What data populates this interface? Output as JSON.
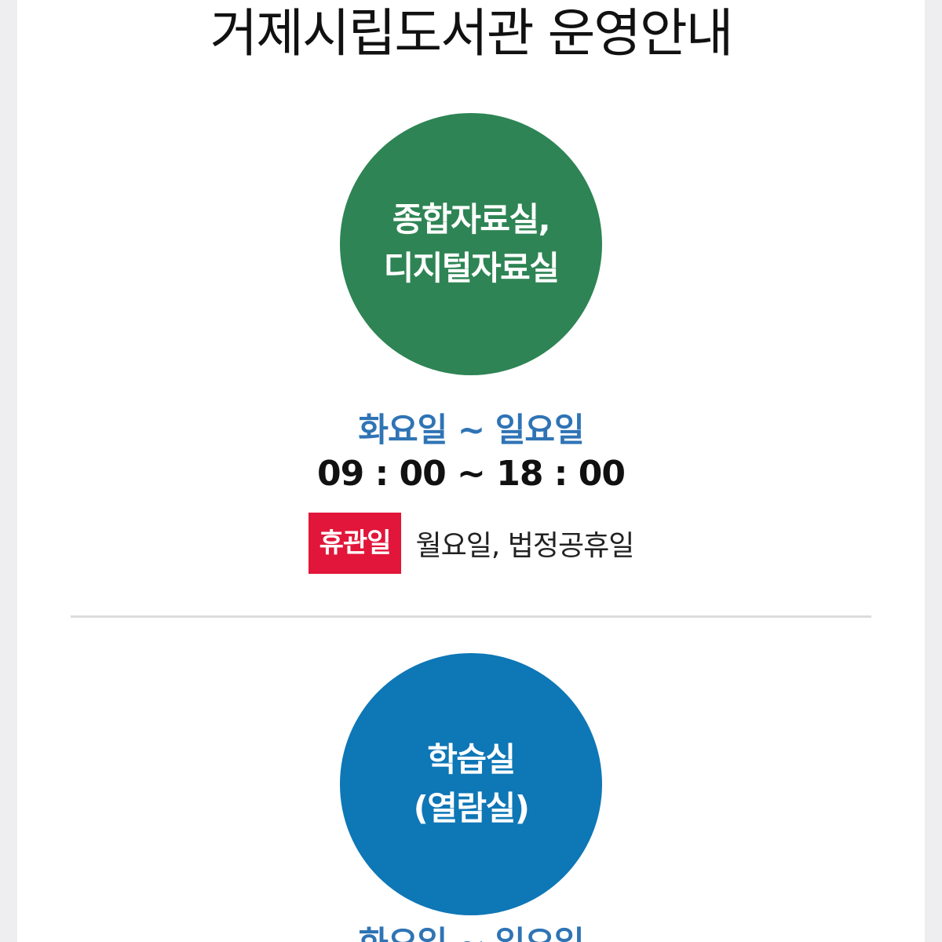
{
  "page": {
    "title": "거제시립도서관 운영안내"
  },
  "sections": [
    {
      "name_line1": "종합자료실,",
      "name_line2": "디지털자료실",
      "circle_color": "#2e8454",
      "days": "화요일 ~ 일요일",
      "hours": "09 : 00 ~ 18 : 00",
      "closed_badge": "휴관일",
      "closed_days": "월요일, 법정공휴일"
    },
    {
      "name_line1": "학습실",
      "name_line2": "(열람실)",
      "circle_color": "#0e77b6",
      "days": "화요일 ~ 일요일"
    }
  ],
  "colors": {
    "days_text": "#2f74b5",
    "closed_badge": "#e2163a",
    "divider": "#dcdcdc"
  }
}
